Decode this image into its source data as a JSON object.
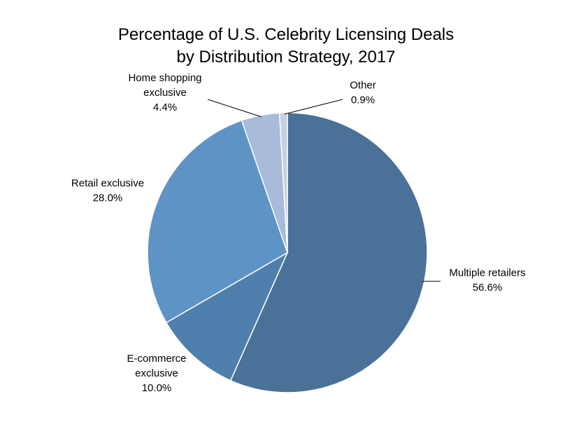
{
  "chart_data": {
    "type": "pie",
    "title": "Percentage of U.S. Celebrity Licensing Deals by Distribution Strategy, 2017",
    "title_lines": [
      "Percentage of U.S. Celebrity Licensing Deals",
      "by Distribution Strategy, 2017"
    ],
    "slices": [
      {
        "label": "Multiple retailers",
        "label_lines": [
          "Multiple retailers"
        ],
        "value_text": "56.6%",
        "value": 56.6,
        "color": "#4a7299"
      },
      {
        "label": "E-commerce exclusive",
        "label_lines": [
          "E-commerce",
          "exclusive"
        ],
        "value_text": "10.0%",
        "value": 10.0,
        "color": "#4f7fad"
      },
      {
        "label": "Retail exclusive",
        "label_lines": [
          "Retail exclusive"
        ],
        "value_text": "28.0%",
        "value": 28.0,
        "color": "#5e93c5"
      },
      {
        "label": "Home shopping exclusive",
        "label_lines": [
          "Home shopping",
          "exclusive"
        ],
        "value_text": "4.4%",
        "value": 4.4,
        "color": "#a8bcd9"
      },
      {
        "label": "Other",
        "label_lines": [
          "Other"
        ],
        "value_text": "0.9%",
        "value": 0.9,
        "color": "#c4d0e3"
      }
    ]
  }
}
